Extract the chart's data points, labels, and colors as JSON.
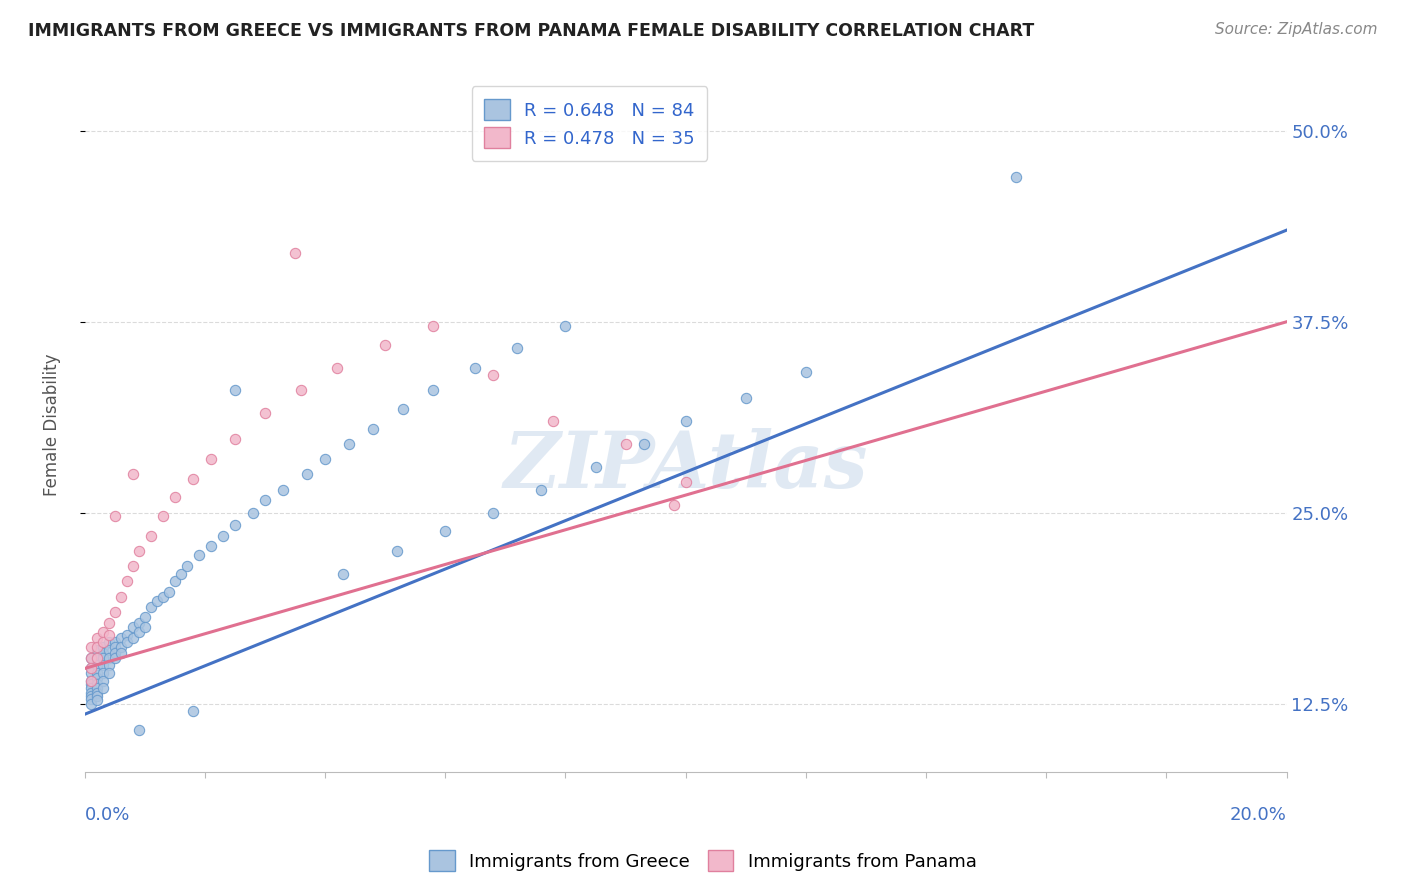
{
  "title": "IMMIGRANTS FROM GREECE VS IMMIGRANTS FROM PANAMA FEMALE DISABILITY CORRELATION CHART",
  "source": "Source: ZipAtlas.com",
  "ylabel": "Female Disability",
  "xlim": [
    0.0,
    0.2
  ],
  "ylim": [
    0.08,
    0.535
  ],
  "yticks": [
    0.125,
    0.25,
    0.375,
    0.5
  ],
  "ytick_labels": [
    "12.5%",
    "25.0%",
    "37.5%",
    "50.0%"
  ],
  "greece_color": "#aac4e0",
  "greece_edge": "#6699cc",
  "panama_color": "#f2b8cb",
  "panama_edge": "#e0809e",
  "greece_line_color": "#4472c4",
  "panama_line_color": "#e07090",
  "greece_R": 0.648,
  "greece_N": 84,
  "panama_R": 0.478,
  "panama_N": 35,
  "legend_label_greece": "Immigrants from Greece",
  "legend_label_panama": "Immigrants from Panama",
  "watermark": "ZIPAtlas",
  "greece_line_x0": 0.0,
  "greece_line_y0": 0.118,
  "greece_line_x1": 0.2,
  "greece_line_y1": 0.435,
  "panama_line_x0": 0.0,
  "panama_line_y0": 0.148,
  "panama_line_x1": 0.2,
  "panama_line_y1": 0.375,
  "greece_scatter_x": [
    0.001,
    0.001,
    0.001,
    0.001,
    0.001,
    0.001,
    0.001,
    0.001,
    0.001,
    0.001,
    0.002,
    0.002,
    0.002,
    0.002,
    0.002,
    0.002,
    0.002,
    0.002,
    0.002,
    0.002,
    0.003,
    0.003,
    0.003,
    0.003,
    0.003,
    0.003,
    0.003,
    0.004,
    0.004,
    0.004,
    0.004,
    0.004,
    0.005,
    0.005,
    0.005,
    0.005,
    0.006,
    0.006,
    0.006,
    0.007,
    0.007,
    0.008,
    0.008,
    0.009,
    0.009,
    0.01,
    0.01,
    0.011,
    0.012,
    0.013,
    0.014,
    0.015,
    0.016,
    0.017,
    0.019,
    0.021,
    0.023,
    0.025,
    0.028,
    0.03,
    0.033,
    0.037,
    0.04,
    0.044,
    0.048,
    0.053,
    0.058,
    0.065,
    0.072,
    0.08,
    0.043,
    0.052,
    0.06,
    0.068,
    0.076,
    0.085,
    0.093,
    0.1,
    0.11,
    0.12,
    0.009,
    0.018,
    0.025,
    0.155
  ],
  "greece_scatter_y": [
    0.155,
    0.148,
    0.145,
    0.14,
    0.138,
    0.135,
    0.132,
    0.13,
    0.128,
    0.125,
    0.16,
    0.155,
    0.15,
    0.145,
    0.142,
    0.138,
    0.135,
    0.132,
    0.13,
    0.127,
    0.162,
    0.158,
    0.155,
    0.15,
    0.145,
    0.14,
    0.135,
    0.165,
    0.16,
    0.155,
    0.15,
    0.145,
    0.165,
    0.162,
    0.158,
    0.155,
    0.168,
    0.162,
    0.158,
    0.17,
    0.165,
    0.175,
    0.168,
    0.178,
    0.172,
    0.182,
    0.175,
    0.188,
    0.192,
    0.195,
    0.198,
    0.205,
    0.21,
    0.215,
    0.222,
    0.228,
    0.235,
    0.242,
    0.25,
    0.258,
    0.265,
    0.275,
    0.285,
    0.295,
    0.305,
    0.318,
    0.33,
    0.345,
    0.358,
    0.372,
    0.21,
    0.225,
    0.238,
    0.25,
    0.265,
    0.28,
    0.295,
    0.31,
    0.325,
    0.342,
    0.108,
    0.12,
    0.33,
    0.47
  ],
  "panama_scatter_x": [
    0.001,
    0.001,
    0.001,
    0.001,
    0.002,
    0.002,
    0.002,
    0.003,
    0.003,
    0.004,
    0.004,
    0.005,
    0.006,
    0.007,
    0.008,
    0.009,
    0.011,
    0.013,
    0.015,
    0.018,
    0.021,
    0.025,
    0.03,
    0.036,
    0.042,
    0.05,
    0.058,
    0.068,
    0.078,
    0.09,
    0.1,
    0.005,
    0.008,
    0.035,
    0.098
  ],
  "panama_scatter_y": [
    0.162,
    0.155,
    0.148,
    0.14,
    0.168,
    0.162,
    0.155,
    0.172,
    0.165,
    0.178,
    0.17,
    0.185,
    0.195,
    0.205,
    0.215,
    0.225,
    0.235,
    0.248,
    0.26,
    0.272,
    0.285,
    0.298,
    0.315,
    0.33,
    0.345,
    0.36,
    0.372,
    0.34,
    0.31,
    0.295,
    0.27,
    0.248,
    0.275,
    0.42,
    0.255
  ]
}
